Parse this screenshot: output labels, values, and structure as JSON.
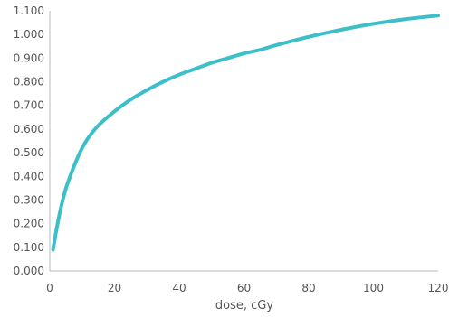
{
  "chart_data": {
    "type": "line",
    "title": "",
    "xlabel": "dose, cGy",
    "ylabel": "",
    "xlim": [
      0,
      120
    ],
    "ylim": [
      0,
      1.1
    ],
    "x_ticks": [
      "0",
      "20",
      "40",
      "60",
      "80",
      "100",
      "120"
    ],
    "y_ticks": [
      "0.000",
      "0.100",
      "0.200",
      "0.300",
      "0.400",
      "0.500",
      "0.600",
      "0.700",
      "0.800",
      "0.900",
      "1.000",
      "1.100"
    ],
    "grid": false,
    "series": [
      {
        "color": "#3dbfc9",
        "x": [
          1,
          2,
          3,
          4,
          5,
          6,
          8,
          10,
          12,
          15,
          20,
          25,
          30,
          35,
          40,
          45,
          50,
          55,
          60,
          65,
          70,
          80,
          90,
          100,
          110,
          120
        ],
        "y": [
          0.09,
          0.17,
          0.24,
          0.3,
          0.35,
          0.39,
          0.46,
          0.52,
          0.565,
          0.615,
          0.675,
          0.725,
          0.765,
          0.8,
          0.83,
          0.855,
          0.88,
          0.9,
          0.92,
          0.935,
          0.955,
          0.99,
          1.02,
          1.045,
          1.065,
          1.08
        ]
      }
    ]
  }
}
